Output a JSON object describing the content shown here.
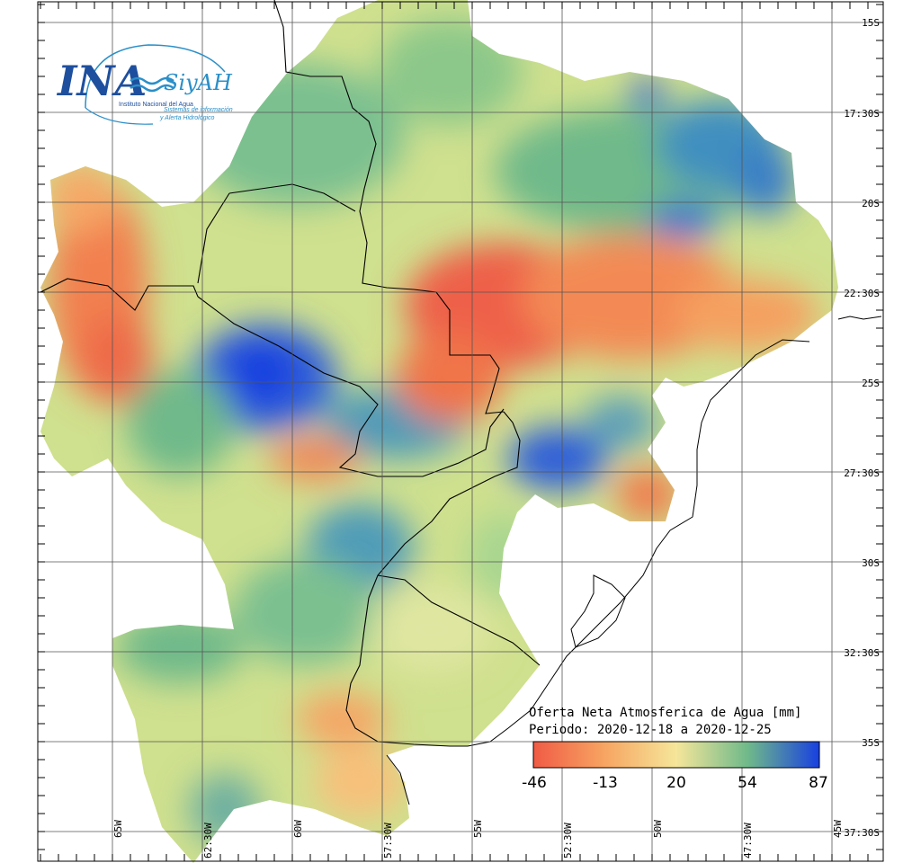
{
  "logo": {
    "ina": "INA",
    "siyah": "SiyAH",
    "institute": "Instituto Nacional del Agua",
    "system_line1": "Sistemas de información",
    "system_line2": "y Alerta Hidrológico"
  },
  "legend": {
    "title_line1": "Oferta Neta Atmosferica de Agua [mm]",
    "title_line2": "Periodo: 2020-12-18 a 2020-12-25",
    "ticks": [
      "-46",
      "-13",
      "20",
      "54",
      "87"
    ],
    "colors": [
      "#f05b45",
      "#f7a562",
      "#f5e69a",
      "#6fb98a",
      "#1840e0"
    ]
  },
  "lat_labels": [
    "15S",
    "17:30S",
    "20S",
    "22:30S",
    "25S",
    "27:30S",
    "30S",
    "32:30S",
    "35S",
    "37:30S"
  ],
  "lon_labels": [
    "65W",
    "62:30W",
    "60W",
    "57:30W",
    "55W",
    "52:30W",
    "50W",
    "47:30W",
    "45W"
  ],
  "palette": {
    "water": "#ffffff",
    "grid": "#555555",
    "border": "#000000"
  }
}
